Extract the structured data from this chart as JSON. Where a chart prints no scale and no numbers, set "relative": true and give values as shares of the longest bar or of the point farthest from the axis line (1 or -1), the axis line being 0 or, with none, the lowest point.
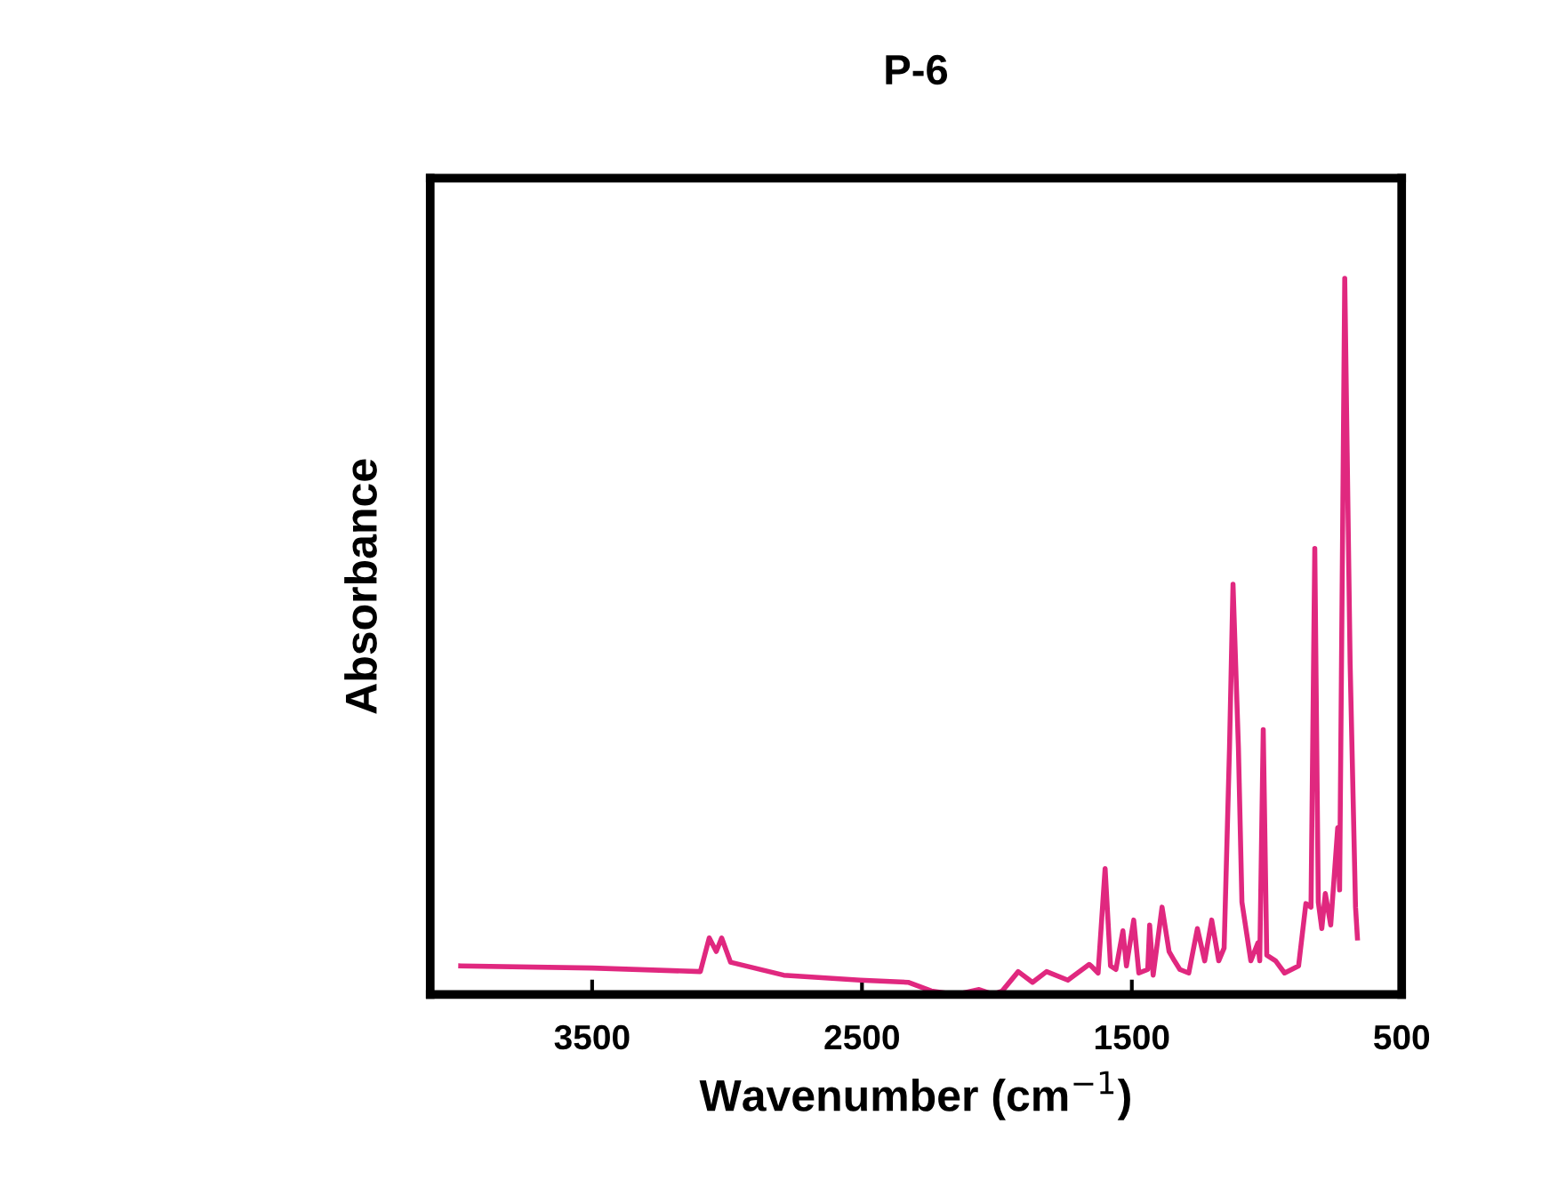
{
  "chart_data": {
    "type": "line",
    "title": "P-6",
    "xlabel": "Wavenumber (cm$^{−1}$)",
    "ylabel": "Absorbance",
    "relative": true,
    "grid": false,
    "legend": false,
    "marker": "none",
    "line_style": "solid",
    "xlim": [
      4100,
      500
    ],
    "xticks": [
      3500,
      2500,
      1500,
      500
    ],
    "x": [
      3987,
      3500,
      3099,
      3066,
      3040,
      3020,
      2987,
      2790,
      2507,
      2329,
      2243,
      2151,
      2066,
      2013,
      1980,
      1921,
      1868,
      1816,
      1737,
      1658,
      1651,
      1625,
      1599,
      1579,
      1559,
      1533,
      1520,
      1493,
      1474,
      1441,
      1434,
      1421,
      1388,
      1362,
      1342,
      1322,
      1289,
      1257,
      1230,
      1204,
      1178,
      1158,
      1138,
      1125,
      1105,
      1092,
      1059,
      1033,
      1026,
      1013,
      1000,
      967,
      934,
      882,
      855,
      836,
      822,
      809,
      796,
      783,
      763,
      737,
      730,
      711,
      691,
      671,
      664
    ],
    "series": [
      {
        "color": "#e0287f",
        "values": [
          0.04,
          0.037,
          0.032,
          0.079,
          0.06,
          0.079,
          0.045,
          0.027,
          0.02,
          0.017,
          0.005,
          0,
          0.007,
          0,
          0.005,
          0.032,
          0.017,
          0.032,
          0.02,
          0.042,
          0.04,
          0.03,
          0.176,
          0.04,
          0.035,
          0.089,
          0.04,
          0.104,
          0.03,
          0.035,
          0.097,
          0.027,
          0.122,
          0.06,
          0.047,
          0.035,
          0.03,
          0.092,
          0.047,
          0.104,
          0.047,
          0.065,
          0.345,
          0.573,
          0.345,
          0.129,
          0.047,
          0.072,
          0.047,
          0.37,
          0.055,
          0.047,
          0.03,
          0.04,
          0.127,
          0.122,
          0.623,
          0.129,
          0.092,
          0.141,
          0.097,
          0.233,
          0.146,
          1.0,
          0.462,
          0.122,
          0.079
        ]
      }
    ]
  }
}
